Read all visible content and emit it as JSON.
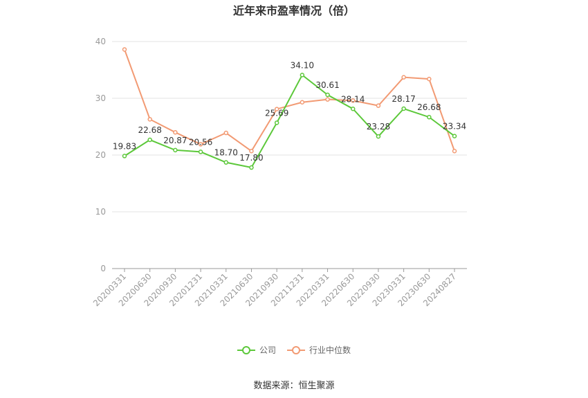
{
  "chart_data": {
    "type": "line",
    "title": "近年来市盈率情况（倍）",
    "categories": [
      "20200331",
      "20200630",
      "20200930",
      "20201231",
      "20210331",
      "20210630",
      "20210930",
      "20211231",
      "20220331",
      "20220630",
      "20220930",
      "20230331",
      "20230630",
      "20240827"
    ],
    "series": [
      {
        "name": "公司",
        "color": "#5cc83a",
        "values": [
          19.83,
          22.68,
          20.87,
          20.56,
          18.7,
          17.8,
          25.69,
          34.1,
          30.61,
          28.14,
          23.28,
          28.17,
          26.68,
          23.34
        ],
        "labels": [
          "19.83",
          "22.68",
          "20.87",
          "20.56",
          "18.70",
          "17.80",
          "25.69",
          "34.10",
          "30.61",
          "28.14",
          "23.28",
          "28.17",
          "26.68",
          "23.34"
        ]
      },
      {
        "name": "行业中位数",
        "color": "#f29a73",
        "values": [
          38.6,
          26.3,
          24.0,
          21.9,
          23.9,
          20.7,
          28.1,
          29.3,
          29.8,
          29.6,
          28.7,
          33.7,
          33.4,
          20.7
        ]
      }
    ],
    "ylim": [
      0,
      40
    ],
    "yticks": [
      0,
      10,
      20,
      30,
      40
    ],
    "grid": true,
    "legend_position": "bottom"
  },
  "source": "数据来源：恒生聚源"
}
